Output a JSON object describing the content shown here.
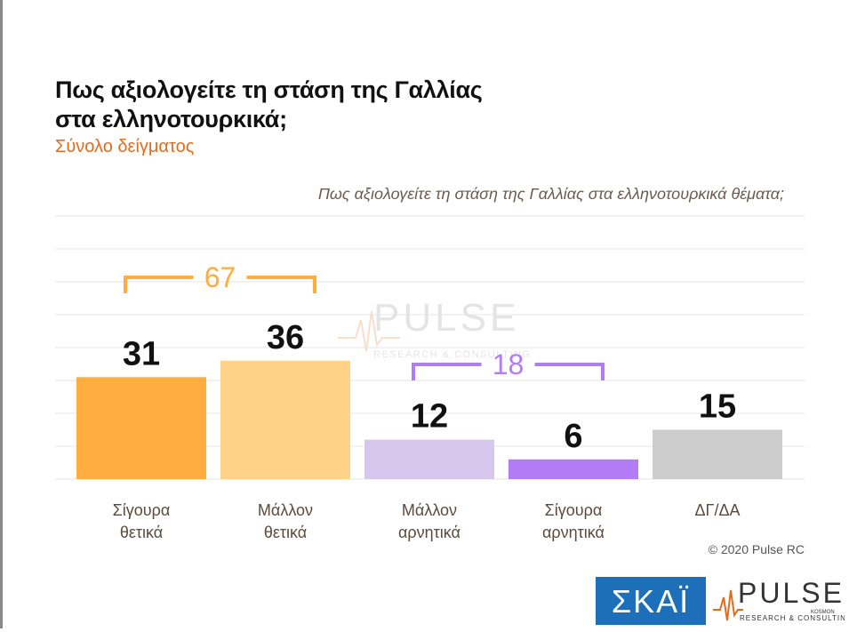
{
  "title_lines": [
    "Πως αξιολογείτε τη στάση της Γαλλίας",
    "στα ελληνοτουρκικά;"
  ],
  "subtitle": "Σύνολο δείγματος",
  "colors": {
    "title": "#111111",
    "subtitle": "#e06c1f",
    "positive_bracket": "#ffad3e",
    "negative_bracket": "#b27cf6",
    "gridline": "#e6e6e6",
    "category_label": "#5a4a3f"
  },
  "chart_data": {
    "type": "bar",
    "title": "Πως αξιολογείτε τη στάση της Γαλλίας στα ελληνοτουρκικά θέματα;",
    "categories": [
      [
        "Σίγουρα",
        "θετικά"
      ],
      [
        "Μάλλον",
        "θετικά"
      ],
      [
        "Μάλλον",
        "αρνητικά"
      ],
      [
        "Σίγουρα",
        "αρνητικά"
      ],
      [
        "ΔΓ/ΔΑ"
      ]
    ],
    "values": [
      31,
      36,
      12,
      6,
      15
    ],
    "bar_colors": [
      "#ffad3e",
      "#ffd387",
      "#d7c6ed",
      "#b27cf6",
      "#cccccc"
    ],
    "ylim": [
      0,
      80
    ],
    "grid": true,
    "annotations": [
      {
        "label": "67",
        "from_index": 0,
        "to_index": 1,
        "color": "#ffad3e"
      },
      {
        "label": "18",
        "from_index": 2,
        "to_index": 3,
        "color": "#b27cf6"
      }
    ]
  },
  "copyright": "© 2020 Pulse RC",
  "logos": {
    "skai": "ΣΚΑΪ",
    "pulse": "PULSE",
    "pulse_sub": "RESEARCH & CONSULTING",
    "pulse_tag": "KOSMON"
  },
  "icons": [
    "skai-logo",
    "pulse-logo",
    "pulse-watermark"
  ]
}
